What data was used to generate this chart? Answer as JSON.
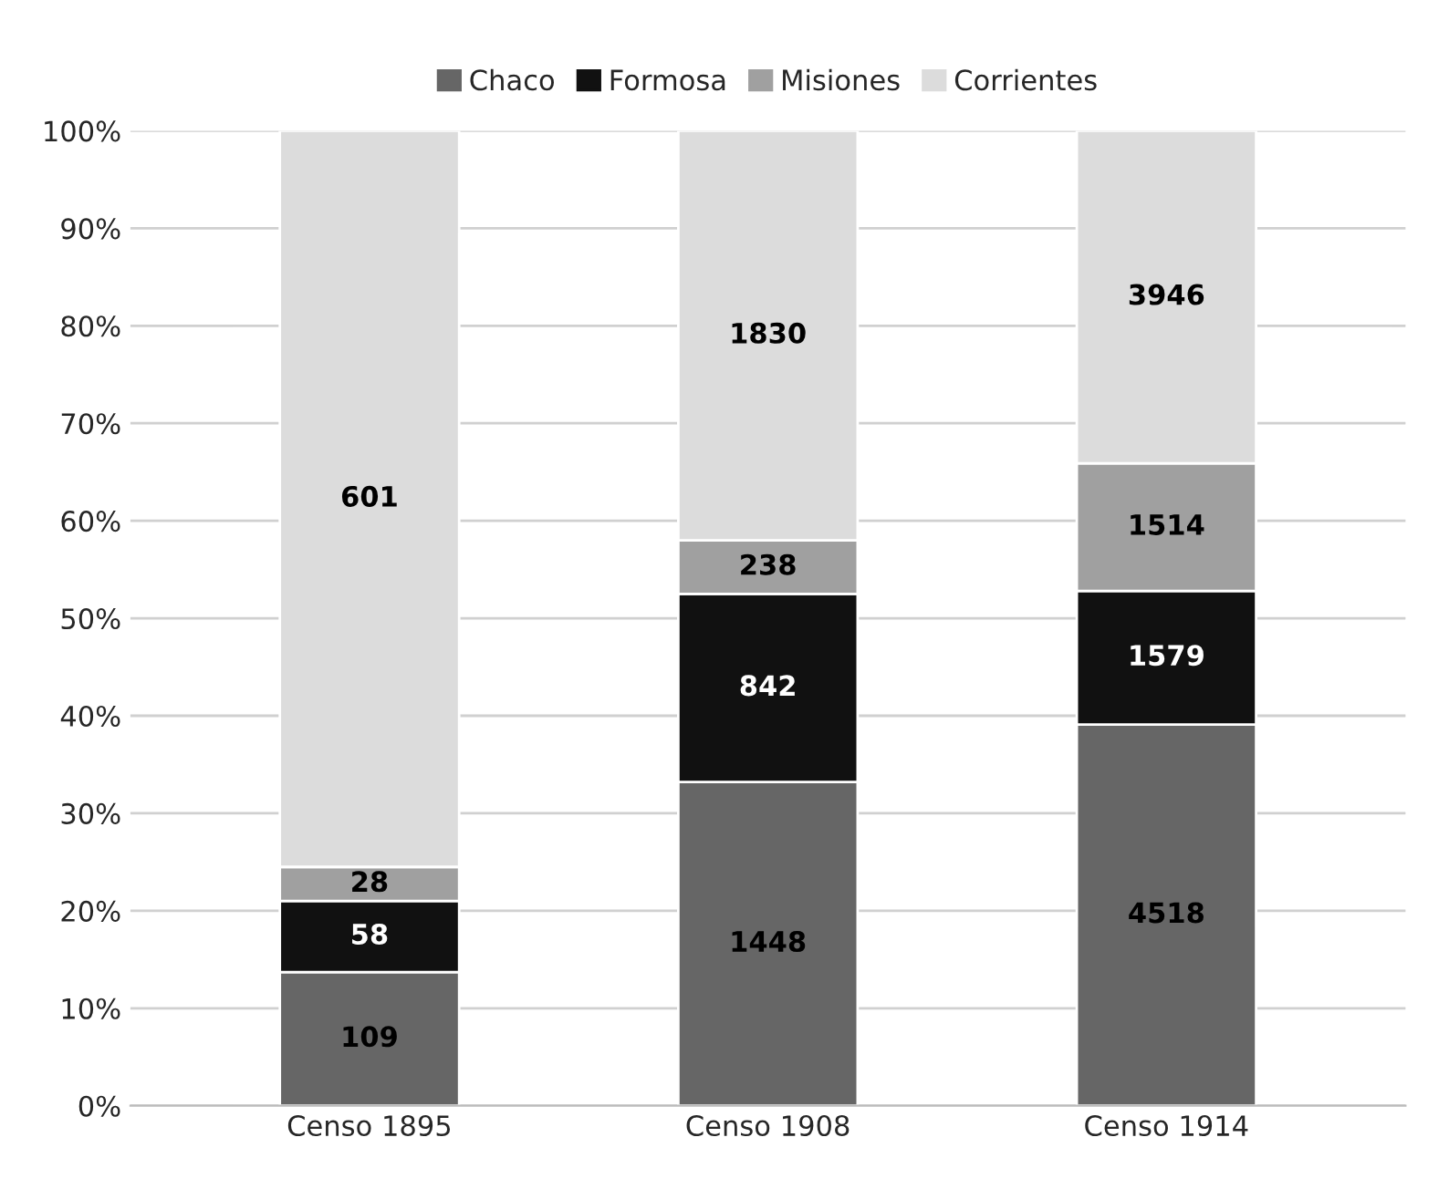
{
  "chart_data": {
    "type": "bar",
    "stacked": true,
    "categories": [
      "Censo 1895",
      "Censo 1908",
      "Censo 1914"
    ],
    "series": [
      {
        "name": "Chaco",
        "color": "#666666",
        "values": [
          13.7,
          33.2,
          39.1
        ]
      },
      {
        "name": "Formosa",
        "color": "#111111",
        "values": [
          7.3,
          19.3,
          13.7
        ]
      },
      {
        "name": "Misiones",
        "color": "#a0a0a0",
        "values": [
          3.5,
          5.5,
          13.1
        ]
      },
      {
        "name": "Corrientes",
        "color": "#dcdcdc",
        "values": [
          75.5,
          42.0,
          34.1
        ]
      }
    ],
    "annotations": [
      "109",
      "1448",
      "4518",
      "58",
      "842",
      "1579",
      "28",
      "238",
      "1514",
      "601",
      "1830",
      "3946"
    ],
    "ylim": [
      0,
      100
    ],
    "yticks": [
      {
        "value": 0,
        "label": "0%"
      },
      {
        "value": 10,
        "label": "10%"
      },
      {
        "value": 20,
        "label": "20%"
      },
      {
        "value": 30,
        "label": "30%"
      },
      {
        "value": 40,
        "label": "40%"
      },
      {
        "value": 50,
        "label": "50%"
      },
      {
        "value": 60,
        "label": "60%"
      },
      {
        "value": 70,
        "label": "70%"
      },
      {
        "value": 80,
        "label": "80%"
      },
      {
        "value": 90,
        "label": "90%"
      },
      {
        "value": 100,
        "label": "100%"
      }
    ],
    "grid": "y",
    "legend": "top"
  }
}
